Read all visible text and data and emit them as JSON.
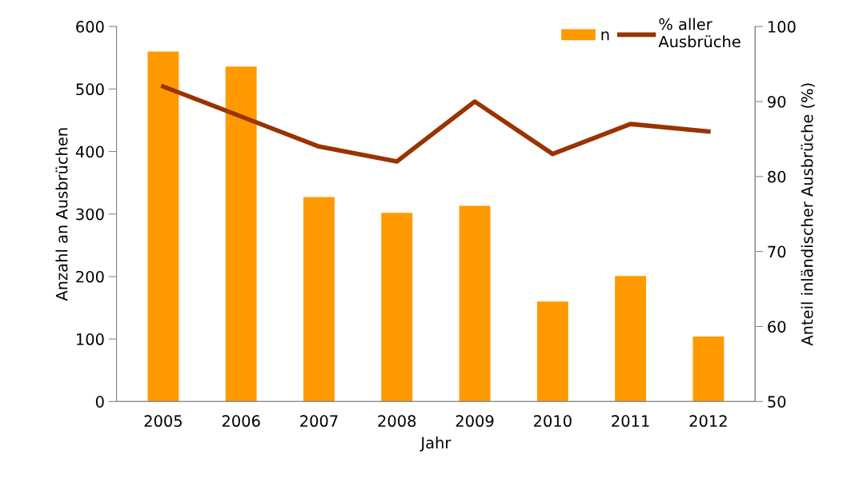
{
  "chart_data": {
    "type": "bar",
    "xlabel": "Jahr",
    "ylabel": "Anzahl an Ausbrüchen",
    "y2label": "Anteil inländischer Ausbrüche (%)",
    "categories": [
      "2005",
      "2006",
      "2007",
      "2008",
      "2009",
      "2010",
      "2011",
      "2012"
    ],
    "series": [
      {
        "name": "n",
        "color": "#ff9900",
        "values": [
          560,
          536,
          327,
          302,
          313,
          160,
          201,
          104
        ]
      },
      {
        "name": "% aller\nAusbrüche",
        "type": "line",
        "axis": "y2",
        "color": "#993300",
        "values": [
          92,
          88,
          84,
          82,
          90,
          83,
          87,
          86
        ]
      }
    ],
    "ylim": [
      0,
      600
    ],
    "yticks": [
      0,
      100,
      200,
      300,
      400,
      500,
      600
    ],
    "y2lim": [
      50,
      100
    ],
    "y2ticks": [
      50,
      60,
      70,
      80,
      90,
      100
    ],
    "grid": false,
    "legend": "top right",
    "marker": "none",
    "line_style": "solid"
  }
}
